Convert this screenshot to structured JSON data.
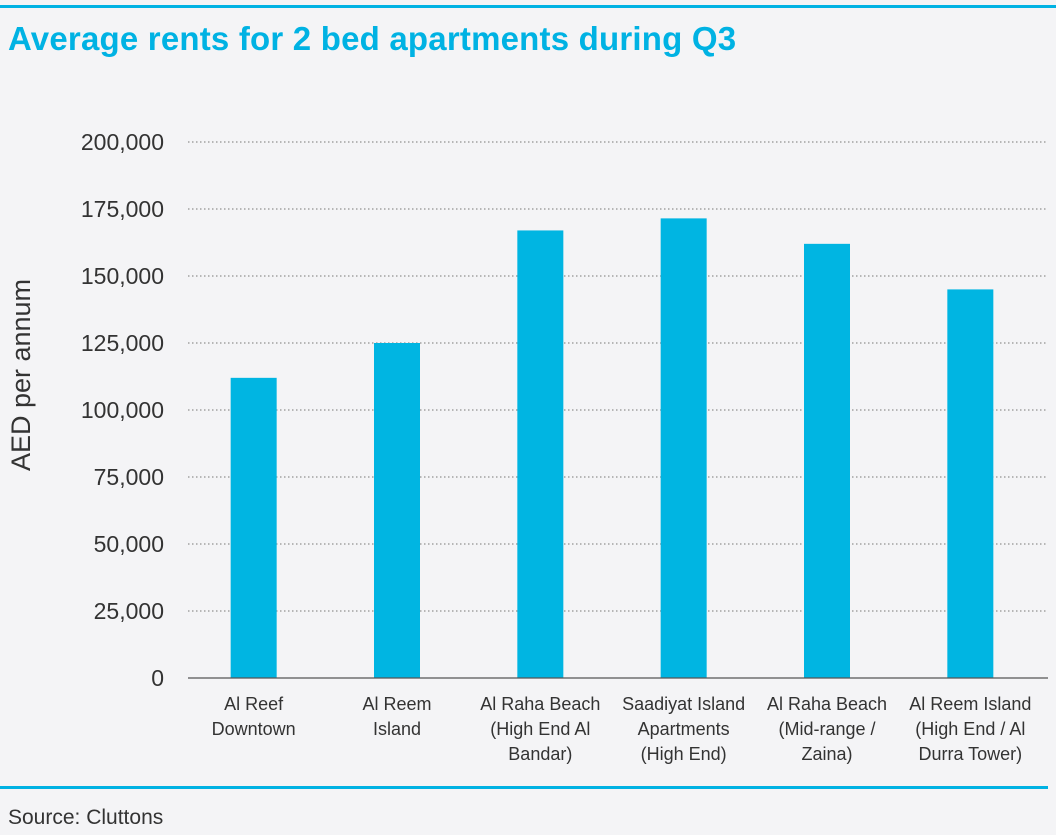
{
  "title": "Average rents for 2 bed apartments during Q3",
  "source": "Source: Cluttons",
  "colors": {
    "accent": "#00b2e3",
    "bar": "#00b5e2",
    "text": "#333333",
    "grid": "#777777",
    "background": "#f4f4f6"
  },
  "chart_data": {
    "type": "bar",
    "title": "Average rents for 2 bed apartments during Q3",
    "xlabel": "",
    "ylabel": "AED per annum",
    "ylim": [
      0,
      200000
    ],
    "yticks": [
      0,
      25000,
      50000,
      75000,
      100000,
      125000,
      150000,
      175000,
      200000
    ],
    "ytick_labels": [
      "0",
      "25,000",
      "50,000",
      "75,000",
      "100,000",
      "125,000",
      "150,000",
      "175,000",
      "200,000"
    ],
    "grid": true,
    "legend": "none",
    "categories": [
      [
        "Al Reef",
        "Downtown"
      ],
      [
        "Al Reem",
        "Island"
      ],
      [
        "Al Raha Beach",
        "(High End Al",
        "Bandar)"
      ],
      [
        "Saadiyat Island",
        "Apartments",
        "(High End)"
      ],
      [
        "Al Raha Beach",
        "(Mid-range /",
        "Zaina)"
      ],
      [
        "Al Reem Island",
        "(High End / Al",
        "Durra Tower)"
      ]
    ],
    "values": [
      112000,
      125000,
      167000,
      171500,
      162000,
      145000
    ]
  }
}
